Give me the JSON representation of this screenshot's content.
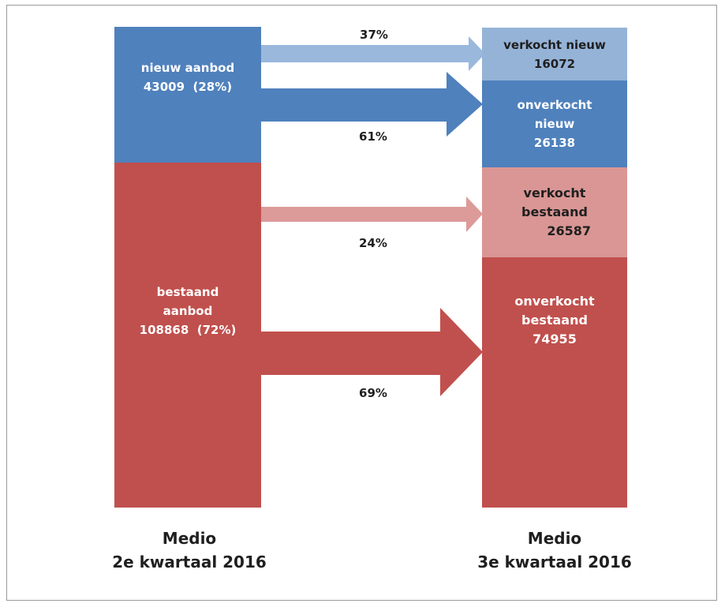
{
  "colors": {
    "new_blue": "#4f81bd",
    "new_sold_light_blue": "#95b3d7",
    "existing_red": "#c0504d",
    "existing_sold_pink": "#d99694",
    "arrow_blue_light": "#9ab8dc",
    "arrow_blue": "#4f81bd",
    "arrow_pink": "#dc9a99",
    "arrow_red": "#c0504d"
  },
  "left_column": {
    "new_supply": {
      "line1": "nieuw aanbod",
      "line2": "43009  (28%)"
    },
    "existing_supply": {
      "line1": "bestaand",
      "line2": "aanbod",
      "line3": "108868  (72%)"
    }
  },
  "right_column": {
    "sold_new": {
      "line1": "verkocht nieuw",
      "line2": "16072"
    },
    "unsold_new": {
      "line1": "onverkocht",
      "line2": "nieuw",
      "line3": "26138"
    },
    "sold_existing": {
      "line1": "verkocht",
      "line2": "bestaand",
      "line3": "26587"
    },
    "unsold_existing": {
      "line1": "onverkocht",
      "line2": "bestaand",
      "line3": "74955"
    }
  },
  "flows": {
    "new_sold_pct": "37%",
    "new_unsold_pct": "61%",
    "existing_sold_pct": "24%",
    "existing_unsold_pct": "69%"
  },
  "periods": {
    "left": {
      "line1": "Medio",
      "line2": "2e kwartaal 2016"
    },
    "right": {
      "line1": "Medio",
      "line2": "3e kwartaal 2016"
    }
  }
}
